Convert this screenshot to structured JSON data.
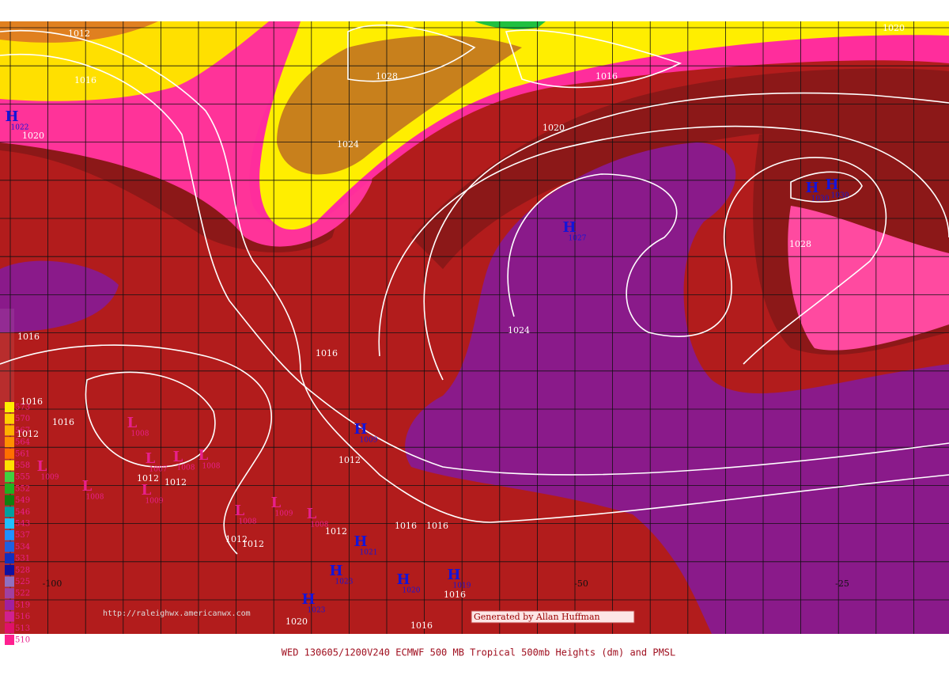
{
  "map": {
    "footer_title": "WED 130605/1200V240  ECMWF  500 MB Tropical 500mb Heights (dm) and PMSL",
    "credit": "Generated by Allan Huffman",
    "url": "http://raleighwx.americanwx.com",
    "longitudes": [
      "-100",
      "-50",
      "-25"
    ],
    "isobar_labels": [
      "1012",
      "1016",
      "1020",
      "1028",
      "1024",
      "1016",
      "1020",
      "1020",
      "1028",
      "1024",
      "1016",
      "1016",
      "1016",
      "1012",
      "1012",
      "1012",
      "1012",
      "1012",
      "1012",
      "1012",
      "1016",
      "1016",
      "1016",
      "1016",
      "1020",
      "1016"
    ],
    "pressure_systems": [
      {
        "symbol": "H",
        "pressure": "1022"
      },
      {
        "symbol": "H",
        "pressure": "1030"
      },
      {
        "symbol": "H",
        "pressure": "1030"
      },
      {
        "symbol": "H",
        "pressure": "1027"
      },
      {
        "symbol": "H",
        "pressure": "1009"
      },
      {
        "symbol": "H",
        "pressure": "1021"
      },
      {
        "symbol": "H",
        "pressure": "1023"
      },
      {
        "symbol": "H",
        "pressure": "1020"
      },
      {
        "symbol": "H",
        "pressure": "1019"
      },
      {
        "symbol": "H",
        "pressure": "1023"
      },
      {
        "symbol": "L",
        "pressure": "1008"
      },
      {
        "symbol": "L",
        "pressure": "1009"
      },
      {
        "symbol": "L",
        "pressure": "1008"
      },
      {
        "symbol": "L",
        "pressure": "1009"
      },
      {
        "symbol": "L",
        "pressure": "1007"
      },
      {
        "symbol": "L",
        "pressure": "1008"
      },
      {
        "symbol": "L",
        "pressure": "1008"
      },
      {
        "symbol": "L",
        "pressure": "1008"
      },
      {
        "symbol": "L",
        "pressure": "1009"
      },
      {
        "symbol": "L",
        "pressure": "1008"
      }
    ],
    "legend": [
      "573",
      "570",
      "567",
      "564",
      "561",
      "558",
      "555",
      "552",
      "549",
      "546",
      "543",
      "537",
      "534",
      "531",
      "528",
      "525",
      "522",
      "519",
      "516",
      "513",
      "510"
    ]
  }
}
